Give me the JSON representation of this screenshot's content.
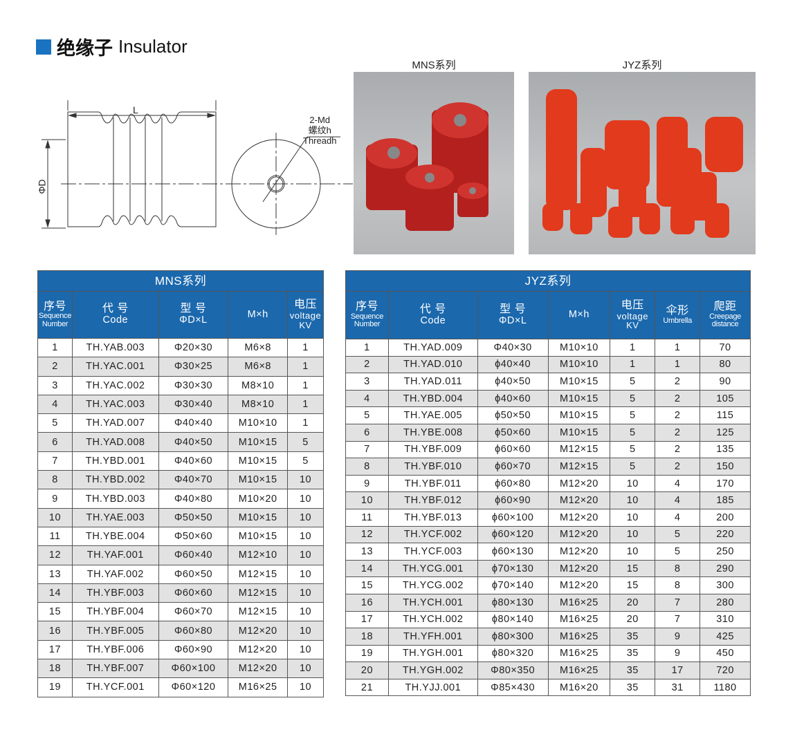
{
  "header": {
    "title_cn": "绝缘子",
    "title_en": "Insulator",
    "accent": "#1a73c0"
  },
  "drawing": {
    "length_label": "L",
    "diameter_label": "ΦD",
    "thread_line1": "2-Md",
    "thread_line2": "螺纹h",
    "thread_line3": "Threadh"
  },
  "photos": {
    "mns_label": "MNS系列",
    "jyz_label": "JYZ系列"
  },
  "mns_table": {
    "caption": "MNS系列",
    "headers": [
      [
        "序号",
        "Sequence Number"
      ],
      [
        "代 号",
        "Code"
      ],
      [
        "型 号",
        "ΦD×L"
      ],
      [
        "",
        "M×h"
      ],
      [
        "电压",
        "voltage KV"
      ]
    ],
    "rows": [
      [
        "1",
        "TH.YAB.003",
        "Φ20×30",
        "M6×8",
        "1"
      ],
      [
        "2",
        "TH.YAC.001",
        "Φ30×25",
        "M6×8",
        "1"
      ],
      [
        "3",
        "TH.YAC.002",
        "Φ30×30",
        "M8×10",
        "1"
      ],
      [
        "4",
        "TH.YAC.003",
        "Φ30×40",
        "M8×10",
        "1"
      ],
      [
        "5",
        "TH.YAD.007",
        "Φ40×40",
        "M10×10",
        "1"
      ],
      [
        "6",
        "TH.YAD.008",
        "Φ40×50",
        "M10×15",
        "5"
      ],
      [
        "7",
        "TH.YBD.001",
        "Φ40×60",
        "M10×15",
        "5"
      ],
      [
        "8",
        "TH.YBD.002",
        "Φ40×70",
        "M10×15",
        "10"
      ],
      [
        "9",
        "TH.YBD.003",
        "Φ40×80",
        "M10×20",
        "10"
      ],
      [
        "10",
        "TH.YAE.003",
        "Φ50×50",
        "M10×15",
        "10"
      ],
      [
        "11",
        "TH.YBE.004",
        "Φ50×60",
        "M10×15",
        "10"
      ],
      [
        "12",
        "TH.YAF.001",
        "Φ60×40",
        "M12×10",
        "10"
      ],
      [
        "13",
        "TH.YAF.002",
        "Φ60×50",
        "M12×15",
        "10"
      ],
      [
        "14",
        "TH.YBF.003",
        "Φ60×60",
        "M12×15",
        "10"
      ],
      [
        "15",
        "TH.YBF.004",
        "Φ60×70",
        "M12×15",
        "10"
      ],
      [
        "16",
        "TH.YBF.005",
        "Φ60×80",
        "M12×20",
        "10"
      ],
      [
        "17",
        "TH.YBF.006",
        "Φ60×90",
        "M12×20",
        "10"
      ],
      [
        "18",
        "TH.YBF.007",
        "Φ60×100",
        "M12×20",
        "10"
      ],
      [
        "19",
        "TH.YCF.001",
        "Φ60×120",
        "M16×25",
        "10"
      ]
    ]
  },
  "jyz_table": {
    "caption": "JYZ系列",
    "headers": [
      [
        "序号",
        "Sequence Number"
      ],
      [
        "代 号",
        "Code"
      ],
      [
        "型 号",
        "ΦD×L"
      ],
      [
        "",
        "M×h"
      ],
      [
        "电压",
        "voltage KV"
      ],
      [
        "伞形",
        "Umbrella"
      ],
      [
        "爬距",
        "Creepage distance"
      ]
    ],
    "rows": [
      [
        "1",
        "TH.YAD.009",
        "Φ40×30",
        "M10×10",
        "1",
        "1",
        "70"
      ],
      [
        "2",
        "TH.YAD.010",
        "ϕ40×40",
        "M10×10",
        "1",
        "1",
        "80"
      ],
      [
        "3",
        "TH.YAD.011",
        "ϕ40×50",
        "M10×15",
        "5",
        "2",
        "90"
      ],
      [
        "4",
        "TH.YBD.004",
        "ϕ40×60",
        "M10×15",
        "5",
        "2",
        "105"
      ],
      [
        "5",
        "TH.YAE.005",
        "ϕ50×50",
        "M10×15",
        "5",
        "2",
        "115"
      ],
      [
        "6",
        "TH.YBE.008",
        "ϕ50×60",
        "M10×15",
        "5",
        "2",
        "125"
      ],
      [
        "7",
        "TH.YBF.009",
        "ϕ60×60",
        "M12×15",
        "5",
        "2",
        "135"
      ],
      [
        "8",
        "TH.YBF.010",
        "ϕ60×70",
        "M12×15",
        "5",
        "2",
        "150"
      ],
      [
        "9",
        "TH.YBF.011",
        "ϕ60×80",
        "M12×20",
        "10",
        "4",
        "170"
      ],
      [
        "10",
        "TH.YBF.012",
        "ϕ60×90",
        "M12×20",
        "10",
        "4",
        "185"
      ],
      [
        "11",
        "TH.YBF.013",
        "ϕ60×100",
        "M12×20",
        "10",
        "4",
        "200"
      ],
      [
        "12",
        "TH.YCF.002",
        "ϕ60×120",
        "M12×20",
        "10",
        "5",
        "220"
      ],
      [
        "13",
        "TH.YCF.003",
        "ϕ60×130",
        "M12×20",
        "10",
        "5",
        "250"
      ],
      [
        "14",
        "TH.YCG.001",
        "ϕ70×130",
        "M12×20",
        "15",
        "8",
        "290"
      ],
      [
        "15",
        "TH.YCG.002",
        "ϕ70×140",
        "M12×20",
        "15",
        "8",
        "300"
      ],
      [
        "16",
        "TH.YCH.001",
        "ϕ80×130",
        "M16×25",
        "20",
        "7",
        "280"
      ],
      [
        "17",
        "TH.YCH.002",
        "ϕ80×140",
        "M16×25",
        "20",
        "7",
        "310"
      ],
      [
        "18",
        "TH.YFH.001",
        "ϕ80×300",
        "M16×25",
        "35",
        "9",
        "425"
      ],
      [
        "19",
        "TH.YGH.001",
        "ϕ80×320",
        "M16×25",
        "35",
        "9",
        "450"
      ],
      [
        "20",
        "TH.YGH.002",
        "Φ80×350",
        "M16×25",
        "35",
        "17",
        "720"
      ],
      [
        "21",
        "TH.YJJ.001",
        "Φ85×430",
        "M16×20",
        "35",
        "31",
        "1180"
      ]
    ]
  }
}
